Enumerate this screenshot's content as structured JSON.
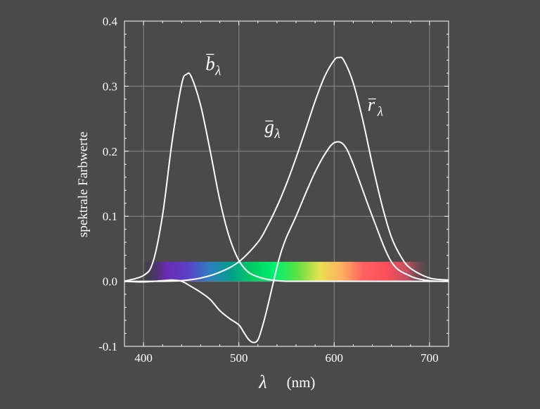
{
  "chart_data": {
    "type": "line",
    "title": "",
    "xlabel": "λ",
    "xunit": "(nm)",
    "ylabel": "spektrale Farbwerte",
    "xlim": [
      380,
      720
    ],
    "ylim": [
      -0.1,
      0.4
    ],
    "xticks": [
      400,
      500,
      600,
      700
    ],
    "yticks": [
      -0.1,
      0.0,
      0.1,
      0.2,
      0.3,
      0.4
    ],
    "ytick_labels": [
      "-0.1",
      "0.0",
      "0.1",
      "0.2",
      "0.3",
      "0.4"
    ],
    "grid": true,
    "colors": {
      "background": "#4a4a4a",
      "curve": "#ffffff",
      "grid": "#8a8a8a",
      "frame": "#ffffff"
    },
    "spectrum_band": {
      "x_range": [
        400,
        700
      ],
      "y_range": [
        0.0,
        0.03
      ],
      "colors": [
        "#2b2450",
        "#6a2bb0",
        "#5a3fc8",
        "#2f7ec0",
        "#00a08a",
        "#00d060",
        "#00f070",
        "#60e040",
        "#e8e050",
        "#ffb060",
        "#ff6060",
        "#ff4f5a",
        "#c05060",
        "#5a4a4a"
      ]
    },
    "series": [
      {
        "name": "b̄λ",
        "label_base": "b",
        "label_sub": "λ",
        "label_pos": [
          465,
          0.325
        ],
        "x": [
          380,
          400,
          410,
          420,
          430,
          440,
          445,
          450,
          460,
          470,
          480,
          490,
          500,
          510,
          520,
          530,
          540,
          550,
          560,
          580,
          600,
          650,
          720
        ],
        "values": [
          0.0003,
          0.009,
          0.03,
          0.102,
          0.215,
          0.303,
          0.318,
          0.315,
          0.27,
          0.2,
          0.125,
          0.068,
          0.032,
          0.014,
          0.007,
          0.003,
          0.001,
          0.0,
          0.0,
          0.0,
          0.0,
          0.0,
          0.0
        ]
      },
      {
        "name": "ḡλ",
        "label_base": "g",
        "label_sub": "λ",
        "label_pos": [
          527,
          0.228
        ],
        "x": [
          380,
          400,
          420,
          430,
          440,
          450,
          460,
          470,
          480,
          490,
          500,
          505,
          510,
          515,
          520,
          525,
          530,
          540,
          545,
          550,
          560,
          570,
          580,
          590,
          600,
          610,
          620,
          640,
          660,
          680,
          700,
          720
        ],
        "values": [
          0.0,
          -0.001,
          0.001,
          0.002,
          0.0,
          -0.008,
          -0.017,
          -0.028,
          -0.045,
          -0.057,
          -0.067,
          -0.078,
          -0.089,
          -0.094,
          -0.09,
          -0.068,
          -0.04,
          0.022,
          0.048,
          0.068,
          0.1,
          0.135,
          0.168,
          0.195,
          0.213,
          0.21,
          0.18,
          0.1,
          0.03,
          0.008,
          0.001,
          0.0
        ]
      },
      {
        "name": "r̄λ",
        "label_base": "r",
        "label_sub": "λ",
        "label_pos": [
          635,
          0.262
        ],
        "x": [
          380,
          400,
          420,
          440,
          460,
          480,
          500,
          520,
          530,
          540,
          550,
          560,
          570,
          580,
          590,
          600,
          605,
          610,
          620,
          630,
          640,
          650,
          660,
          670,
          680,
          700,
          720
        ],
        "values": [
          0.0,
          0.0,
          0.0,
          0.001,
          0.005,
          0.014,
          0.03,
          0.06,
          0.085,
          0.115,
          0.15,
          0.19,
          0.233,
          0.277,
          0.315,
          0.34,
          0.344,
          0.34,
          0.305,
          0.248,
          0.18,
          0.118,
          0.068,
          0.038,
          0.02,
          0.005,
          0.002
        ]
      }
    ]
  }
}
